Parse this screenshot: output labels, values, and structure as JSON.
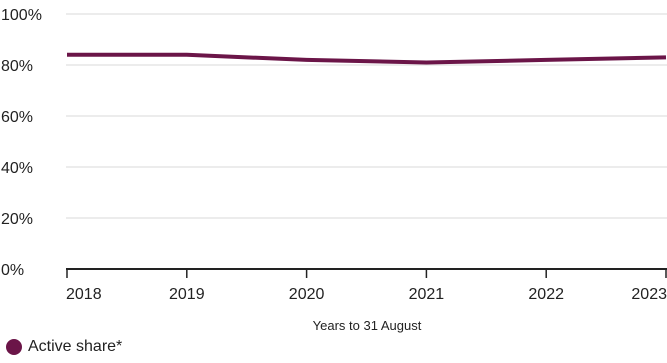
{
  "chart_data": {
    "type": "line",
    "x": [
      "2018",
      "2019",
      "2020",
      "2021",
      "2022",
      "2023"
    ],
    "series": [
      {
        "name": "Active share*",
        "values": [
          84,
          84,
          82,
          81,
          82,
          83
        ],
        "color": "#6b1548"
      }
    ],
    "xlabel": "Years to 31 August",
    "ylabel": "",
    "ylim": [
      0,
      100
    ],
    "yticks": [
      {
        "value": 0,
        "label": "0%"
      },
      {
        "value": 20,
        "label": "20%"
      },
      {
        "value": 40,
        "label": "40%"
      },
      {
        "value": 60,
        "label": "60%"
      },
      {
        "value": 80,
        "label": "80%"
      },
      {
        "value": 100,
        "label": "100%"
      }
    ],
    "grid": true,
    "legend": "bottom-left",
    "grid_color": "#d9d9d9",
    "axis_color": "#222222"
  }
}
